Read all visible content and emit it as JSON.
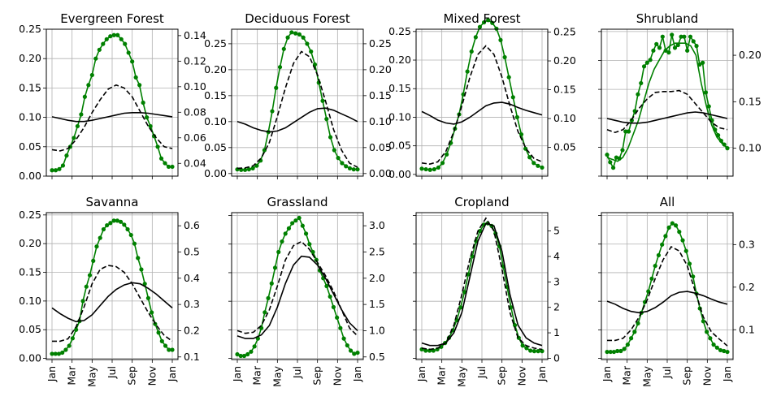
{
  "months": [
    "Jan",
    "Mar",
    "May",
    "Jul",
    "Sep",
    "Nov",
    "Jan"
  ],
  "colors": {
    "green": "#008000",
    "black": "#000000",
    "grid": "#b0b0b0"
  },
  "chart_data": [
    {
      "type": "line",
      "title": "Evergreen Forest",
      "left_ylim": [
        0,
        0.25
      ],
      "left_ticks": [
        "0.00",
        "0.05",
        "0.10",
        "0.15",
        "0.20",
        "0.25"
      ],
      "right_ylim": [
        0.03,
        0.145
      ],
      "right_ticks": [
        "0.04",
        "0.06",
        "0.08",
        "0.10",
        "0.12",
        "0.14"
      ],
      "series": [
        {
          "style": "green-dots",
          "axis": "left",
          "values": [
            0.01,
            0.01,
            0.012,
            0.018,
            0.035,
            0.05,
            0.065,
            0.085,
            0.105,
            0.135,
            0.155,
            0.172,
            0.2,
            0.215,
            0.225,
            0.233,
            0.238,
            0.24,
            0.24,
            0.233,
            0.225,
            0.21,
            0.195,
            0.168,
            0.155,
            0.125,
            0.1,
            0.085,
            0.068,
            0.05,
            0.03,
            0.022,
            0.016,
            0.016
          ]
        },
        {
          "style": "black-dashed",
          "axis": "left",
          "values": [
            0.045,
            0.043,
            0.047,
            0.062,
            0.083,
            0.108,
            0.13,
            0.148,
            0.155,
            0.15,
            0.135,
            0.11,
            0.085,
            0.065,
            0.05,
            0.047
          ]
        },
        {
          "style": "black-solid",
          "axis": "left",
          "values": [
            0.101,
            0.098,
            0.095,
            0.093,
            0.093,
            0.095,
            0.098,
            0.101,
            0.104,
            0.107,
            0.108,
            0.108,
            0.107,
            0.105,
            0.103,
            0.101
          ]
        }
      ]
    },
    {
      "type": "line",
      "title": "Deciduous Forest",
      "left_ylim": [
        -0.005,
        0.278
      ],
      "left_ticks": [
        "0.00",
        "0.05",
        "0.10",
        "0.15",
        "0.20",
        "0.25"
      ],
      "right_ylim": [
        -0.005,
        0.278
      ],
      "right_ticks": [
        "0.00",
        "0.05",
        "0.10",
        "0.15",
        "0.20",
        "0.25"
      ],
      "series": [
        {
          "style": "green-dots",
          "axis": "left",
          "values": [
            0.008,
            0.007,
            0.007,
            0.008,
            0.01,
            0.015,
            0.025,
            0.045,
            0.08,
            0.12,
            0.165,
            0.205,
            0.24,
            0.262,
            0.272,
            0.27,
            0.268,
            0.262,
            0.25,
            0.235,
            0.21,
            0.175,
            0.14,
            0.105,
            0.07,
            0.045,
            0.03,
            0.02,
            0.014,
            0.01,
            0.008,
            0.008
          ]
        },
        {
          "style": "black-dashed",
          "axis": "left",
          "values": [
            0.01,
            0.011,
            0.015,
            0.03,
            0.06,
            0.11,
            0.165,
            0.212,
            0.235,
            0.225,
            0.19,
            0.14,
            0.085,
            0.045,
            0.02,
            0.012
          ]
        },
        {
          "style": "black-solid",
          "axis": "left",
          "values": [
            0.1,
            0.095,
            0.088,
            0.083,
            0.08,
            0.082,
            0.088,
            0.098,
            0.108,
            0.118,
            0.125,
            0.126,
            0.122,
            0.115,
            0.108,
            0.1
          ]
        }
      ]
    },
    {
      "type": "line",
      "title": "Mixed Forest",
      "left_ylim": [
        -0.003,
        0.254
      ],
      "left_ticks": [
        "0.00",
        "0.05",
        "0.10",
        "0.15",
        "0.20",
        "0.25"
      ],
      "right_ylim": [
        0.0,
        0.255
      ],
      "right_ticks": [
        "0.05",
        "0.10",
        "0.15",
        "0.20",
        "0.25"
      ],
      "series": [
        {
          "style": "green-dots",
          "axis": "left",
          "values": [
            0.01,
            0.009,
            0.008,
            0.009,
            0.012,
            0.02,
            0.035,
            0.055,
            0.08,
            0.105,
            0.14,
            0.18,
            0.215,
            0.24,
            0.258,
            0.266,
            0.27,
            0.265,
            0.255,
            0.235,
            0.205,
            0.17,
            0.135,
            0.1,
            0.07,
            0.045,
            0.03,
            0.02,
            0.015,
            0.012
          ]
        },
        {
          "style": "black-dashed",
          "axis": "left",
          "values": [
            0.02,
            0.018,
            0.022,
            0.04,
            0.075,
            0.12,
            0.17,
            0.21,
            0.225,
            0.21,
            0.17,
            0.12,
            0.075,
            0.045,
            0.028,
            0.022
          ]
        },
        {
          "style": "black-solid",
          "axis": "left",
          "values": [
            0.11,
            0.103,
            0.095,
            0.09,
            0.088,
            0.092,
            0.1,
            0.11,
            0.12,
            0.125,
            0.126,
            0.123,
            0.117,
            0.112,
            0.108,
            0.104
          ]
        }
      ]
    },
    {
      "type": "line",
      "title": "Shrubland",
      "left_ylim": [
        0,
        0.254
      ],
      "left_ticks": [],
      "right_ylim": [
        0.07,
        0.228
      ],
      "right_ticks": [
        "0.10",
        "0.15",
        "0.20"
      ],
      "series": [
        {
          "style": "green-dots",
          "axis": "right",
          "values": [
            0.093,
            0.085,
            0.079,
            0.09,
            0.089,
            0.098,
            0.118,
            0.118,
            0.13,
            0.14,
            0.158,
            0.17,
            0.188,
            0.192,
            0.195,
            0.205,
            0.212,
            0.208,
            0.22,
            0.205,
            0.203,
            0.222,
            0.208,
            0.211,
            0.22,
            0.22,
            0.205,
            0.22,
            0.215,
            0.21,
            0.19,
            0.192,
            0.16,
            0.145,
            0.13,
            0.12,
            0.114,
            0.108,
            0.104,
            0.1
          ]
        },
        {
          "style": "green-line",
          "axis": "right",
          "values": [
            0.09,
            0.088,
            0.086,
            0.09,
            0.1,
            0.115,
            0.13,
            0.15,
            0.17,
            0.185,
            0.195,
            0.205,
            0.21,
            0.213,
            0.213,
            0.213,
            0.21,
            0.2,
            0.17,
            0.145,
            0.125,
            0.112,
            0.105,
            0.1
          ]
        },
        {
          "style": "black-dashed",
          "axis": "right",
          "values": [
            0.12,
            0.117,
            0.12,
            0.13,
            0.143,
            0.153,
            0.16,
            0.161,
            0.161,
            0.162,
            0.158,
            0.148,
            0.138,
            0.128,
            0.122,
            0.12
          ]
        },
        {
          "style": "black-solid",
          "axis": "right",
          "values": [
            0.132,
            0.13,
            0.128,
            0.127,
            0.127,
            0.128,
            0.13,
            0.132,
            0.134,
            0.136,
            0.138,
            0.139,
            0.138,
            0.136,
            0.134,
            0.132
          ]
        }
      ]
    },
    {
      "type": "line",
      "title": "Savanna",
      "left_ylim": [
        -0.002,
        0.254
      ],
      "left_ticks": [
        "0.00",
        "0.05",
        "0.10",
        "0.15",
        "0.20",
        "0.25"
      ],
      "right_ylim": [
        0.09,
        0.65
      ],
      "right_ticks": [
        "0.1",
        "0.2",
        "0.3",
        "0.4",
        "0.5",
        "0.6"
      ],
      "series": [
        {
          "style": "green-dots",
          "axis": "left",
          "values": [
            0.008,
            0.008,
            0.008,
            0.01,
            0.015,
            0.022,
            0.035,
            0.05,
            0.065,
            0.1,
            0.125,
            0.145,
            0.17,
            0.195,
            0.21,
            0.225,
            0.232,
            0.236,
            0.24,
            0.24,
            0.238,
            0.233,
            0.225,
            0.215,
            0.2,
            0.175,
            0.155,
            0.13,
            0.105,
            0.08,
            0.06,
            0.045,
            0.03,
            0.022,
            0.015,
            0.015
          ]
        },
        {
          "style": "black-dashed",
          "axis": "left",
          "values": [
            0.03,
            0.03,
            0.034,
            0.055,
            0.09,
            0.13,
            0.155,
            0.162,
            0.16,
            0.15,
            0.13,
            0.105,
            0.08,
            0.058,
            0.04,
            0.03
          ]
        },
        {
          "style": "black-solid",
          "axis": "left",
          "values": [
            0.088,
            0.078,
            0.07,
            0.064,
            0.066,
            0.076,
            0.092,
            0.108,
            0.12,
            0.128,
            0.132,
            0.13,
            0.122,
            0.112,
            0.1,
            0.088
          ]
        }
      ]
    },
    {
      "type": "line",
      "title": "Grassland",
      "left_ylim": [
        -0.002,
        0.255
      ],
      "left_ticks": [],
      "right_ylim": [
        0.45,
        3.25
      ],
      "right_ticks": [
        "0.5",
        "1.0",
        "1.5",
        "2.0",
        "2.5",
        "3.0"
      ],
      "series": [
        {
          "style": "green-dots",
          "axis": "right",
          "values": [
            0.55,
            0.52,
            0.52,
            0.55,
            0.6,
            0.7,
            0.85,
            1.05,
            1.35,
            1.62,
            1.9,
            2.2,
            2.5,
            2.7,
            2.85,
            2.95,
            3.05,
            3.1,
            3.15,
            3.0,
            2.85,
            2.65,
            2.5,
            2.35,
            2.15,
            2.0,
            1.85,
            1.65,
            1.45,
            1.25,
            1.05,
            0.85,
            0.72,
            0.62,
            0.56,
            0.58
          ]
        },
        {
          "style": "black-dashed",
          "axis": "right",
          "values": [
            1.0,
            0.95,
            0.97,
            1.1,
            1.4,
            1.85,
            2.35,
            2.62,
            2.7,
            2.55,
            2.3,
            2.05,
            1.75,
            1.4,
            1.05,
            0.9
          ]
        },
        {
          "style": "black-solid",
          "axis": "right",
          "values": [
            0.9,
            0.85,
            0.85,
            0.92,
            1.1,
            1.45,
            1.9,
            2.25,
            2.42,
            2.4,
            2.25,
            2.0,
            1.7,
            1.4,
            1.15,
            1.0
          ]
        }
      ]
    },
    {
      "type": "line",
      "title": "Cropland",
      "left_ylim": [
        -0.002,
        0.255
      ],
      "left_ticks": [],
      "right_ylim": [
        -0.05,
        5.72
      ],
      "right_ticks": [
        "0",
        "1",
        "2",
        "3",
        "4",
        "5"
      ],
      "series": [
        {
          "style": "green-dots",
          "axis": "right",
          "values": [
            0.35,
            0.3,
            0.3,
            0.3,
            0.35,
            0.45,
            0.6,
            0.8,
            1.1,
            1.5,
            2.0,
            2.6,
            3.3,
            4.0,
            4.6,
            5.0,
            5.25,
            5.3,
            5.2,
            4.9,
            4.4,
            3.6,
            2.8,
            2.0,
            1.3,
            0.8,
            0.5,
            0.4,
            0.3,
            0.28,
            0.28,
            0.28
          ]
        },
        {
          "style": "black-dashed",
          "axis": "right",
          "values": [
            0.4,
            0.35,
            0.4,
            0.6,
            1.3,
            2.5,
            3.9,
            5.0,
            5.5,
            5.0,
            3.5,
            1.8,
            0.8,
            0.5,
            0.4,
            0.35
          ]
        },
        {
          "style": "black-solid",
          "axis": "right",
          "values": [
            0.6,
            0.5,
            0.5,
            0.6,
            1.0,
            1.8,
            3.2,
            4.6,
            5.3,
            5.2,
            4.2,
            2.5,
            1.3,
            0.8,
            0.6,
            0.5
          ]
        }
      ]
    },
    {
      "type": "line",
      "title": "All",
      "left_ylim": [
        -0.002,
        0.255
      ],
      "left_ticks": [],
      "right_ylim": [
        0.03,
        0.375
      ],
      "right_ticks": [
        "0.1",
        "0.2",
        "0.3"
      ],
      "series": [
        {
          "style": "green-dots",
          "axis": "right",
          "values": [
            0.048,
            0.048,
            0.048,
            0.05,
            0.05,
            0.055,
            0.065,
            0.08,
            0.095,
            0.115,
            0.14,
            0.165,
            0.19,
            0.22,
            0.25,
            0.275,
            0.3,
            0.32,
            0.34,
            0.35,
            0.345,
            0.33,
            0.31,
            0.285,
            0.255,
            0.225,
            0.185,
            0.15,
            0.12,
            0.095,
            0.08,
            0.065,
            0.058,
            0.052,
            0.05,
            0.048
          ]
        },
        {
          "style": "black-dashed",
          "axis": "right",
          "values": [
            0.075,
            0.075,
            0.08,
            0.1,
            0.13,
            0.17,
            0.22,
            0.265,
            0.295,
            0.285,
            0.25,
            0.19,
            0.13,
            0.095,
            0.078,
            0.062
          ]
        },
        {
          "style": "black-solid",
          "axis": "right",
          "values": [
            0.167,
            0.16,
            0.15,
            0.143,
            0.14,
            0.143,
            0.152,
            0.165,
            0.18,
            0.188,
            0.19,
            0.186,
            0.18,
            0.172,
            0.165,
            0.16
          ]
        }
      ]
    }
  ]
}
